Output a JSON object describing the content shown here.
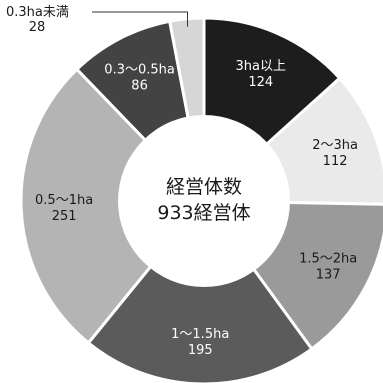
{
  "chart_data": {
    "type": "pie",
    "variant": "donut",
    "center_label": [
      "経営体数",
      "933経営体"
    ],
    "categories": [
      "3ha以上",
      "2～3ha",
      "1.5～2ha",
      "1～1.5ha",
      "0.5～1ha",
      "0.3～0.5ha",
      "0.3ha未満"
    ],
    "values": [
      124,
      112,
      137,
      195,
      251,
      86,
      28
    ],
    "total": 933,
    "colors": [
      "#1d1d1d",
      "#eaeaea",
      "#9a9a9a",
      "#5b5b5b",
      "#b4b4b4",
      "#434343",
      "#d6d6d6"
    ],
    "label_colors": [
      "#ffffff",
      "#1a1a1a",
      "#1a1a1a",
      "#ffffff",
      "#1a1a1a",
      "#ffffff",
      "#1a1a1a"
    ],
    "legend": "none"
  }
}
